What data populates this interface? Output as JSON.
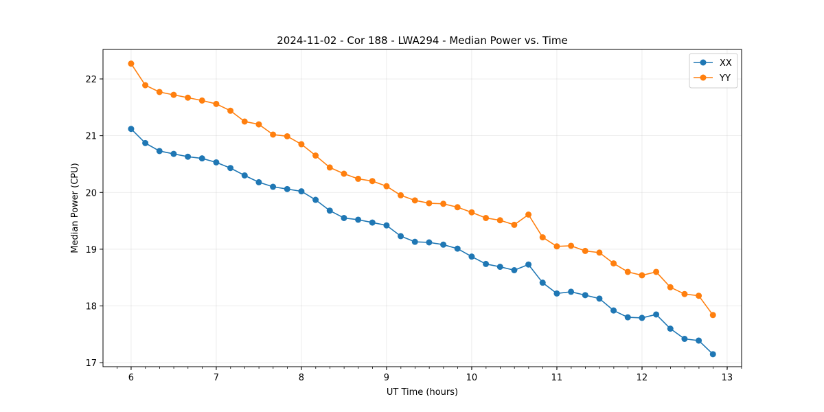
{
  "chart_data": {
    "type": "line",
    "title": "2024-11-02 - Cor 188 - LWA294 - Median Power vs. Time",
    "xlabel": "UT Time (hours)",
    "ylabel": "Median Power (CPU)",
    "xlim": [
      5.67,
      13.17
    ],
    "ylim": [
      16.93,
      22.52
    ],
    "xticks": [
      6,
      7,
      8,
      9,
      10,
      11,
      12,
      13
    ],
    "yticks": [
      17,
      18,
      19,
      20,
      21,
      22
    ],
    "x_minor_step": 0.1667,
    "grid": true,
    "legend_position": "top-right",
    "x": [
      6.0,
      6.1667,
      6.3333,
      6.5,
      6.6667,
      6.8333,
      7.0,
      7.1667,
      7.3333,
      7.5,
      7.6667,
      7.8333,
      8.0,
      8.1667,
      8.3333,
      8.5,
      8.6667,
      8.8333,
      9.0,
      9.1667,
      9.3333,
      9.5,
      9.6667,
      9.8333,
      10.0,
      10.1667,
      10.3333,
      10.5,
      10.6667,
      10.8333,
      11.0,
      11.1667,
      11.3333,
      11.5,
      11.6667,
      11.8333,
      12.0,
      12.1667,
      12.3333,
      12.5,
      12.6667,
      12.8333
    ],
    "series": [
      {
        "name": "XX",
        "color": "#1f77b4",
        "values": [
          21.12,
          20.87,
          20.73,
          20.68,
          20.63,
          20.6,
          20.53,
          20.43,
          20.3,
          20.18,
          20.1,
          20.06,
          20.02,
          19.87,
          19.68,
          19.55,
          19.52,
          19.47,
          19.42,
          19.23,
          19.13,
          19.12,
          19.08,
          19.01,
          18.87,
          18.74,
          18.69,
          18.63,
          18.73,
          18.41,
          18.22,
          18.25,
          18.19,
          18.13,
          17.92,
          17.8,
          17.79,
          17.85,
          17.6,
          17.42,
          17.39,
          17.15
        ]
      },
      {
        "name": "YY",
        "color": "#ff7f0e",
        "values": [
          22.27,
          21.89,
          21.77,
          21.72,
          21.67,
          21.62,
          21.56,
          21.44,
          21.25,
          21.2,
          21.02,
          20.99,
          20.85,
          20.65,
          20.44,
          20.33,
          20.24,
          20.2,
          20.11,
          19.95,
          19.86,
          19.81,
          19.8,
          19.74,
          19.65,
          19.55,
          19.51,
          19.43,
          19.61,
          19.21,
          19.05,
          19.06,
          18.97,
          18.94,
          18.75,
          18.6,
          18.54,
          18.6,
          18.33,
          18.21,
          18.18,
          17.84
        ]
      }
    ]
  }
}
